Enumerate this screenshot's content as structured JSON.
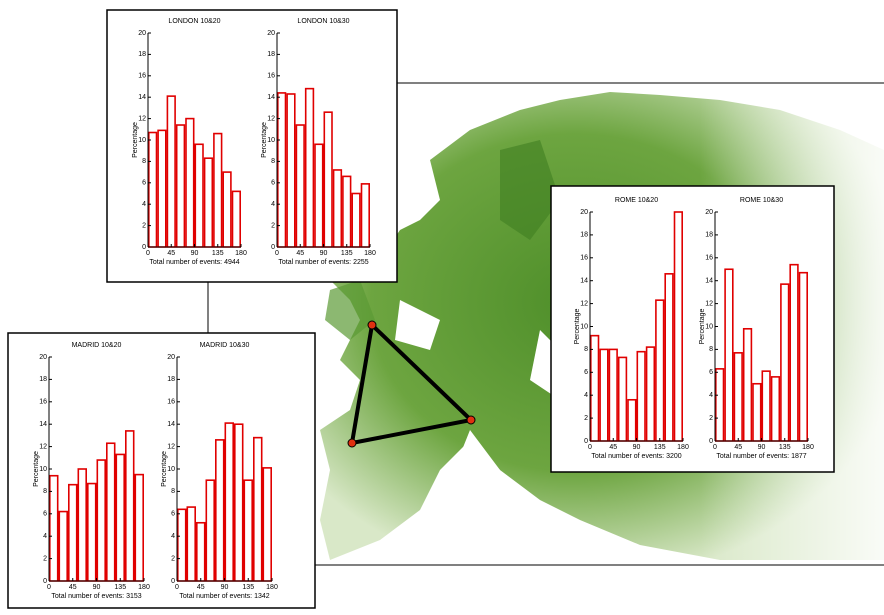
{
  "chart_data": [
    {
      "type": "histogram",
      "title": "LONDON 10&20",
      "x_label": "Total number of events: 4944",
      "y_label": "Percentage",
      "bins": [
        0,
        18,
        36,
        54,
        72,
        90,
        108,
        126,
        144,
        162,
        180
      ],
      "values": [
        10.7,
        10.9,
        14.1,
        11.4,
        12.0,
        9.6,
        8.3,
        10.6,
        7.0,
        5.2
      ],
      "color": "#e00000",
      "xlim": [
        0,
        180
      ],
      "ylim": [
        0,
        20
      ],
      "xticks": [
        0,
        45,
        90,
        135,
        180
      ],
      "yticks": [
        0,
        2,
        4,
        6,
        8,
        10,
        12,
        14,
        16,
        18,
        20
      ]
    },
    {
      "type": "histogram",
      "title": "LONDON 10&30",
      "x_label": "Total number of events: 2255",
      "y_label": "Percentage",
      "bins": [
        0,
        18,
        36,
        54,
        72,
        90,
        108,
        126,
        144,
        162,
        180
      ],
      "values": [
        14.4,
        14.3,
        11.4,
        14.8,
        9.6,
        12.6,
        7.2,
        6.6,
        5.0,
        5.9
      ],
      "color": "#e00000",
      "xlim": [
        0,
        180
      ],
      "ylim": [
        0,
        20
      ],
      "xticks": [
        0,
        45,
        90,
        135,
        180
      ],
      "yticks": [
        0,
        2,
        4,
        6,
        8,
        10,
        12,
        14,
        16,
        18,
        20
      ]
    },
    {
      "type": "histogram",
      "title": "ROME 10&20",
      "x_label": "Total number of events: 3200",
      "y_label": "Percentage",
      "bins": [
        0,
        18,
        36,
        54,
        72,
        90,
        108,
        126,
        144,
        162,
        180
      ],
      "values": [
        9.2,
        8.0,
        8.0,
        7.3,
        3.6,
        7.8,
        8.2,
        12.3,
        14.6,
        20.0
      ],
      "color": "#e00000",
      "xlim": [
        0,
        180
      ],
      "ylim": [
        0,
        20
      ],
      "xticks": [
        0,
        45,
        90,
        135,
        180
      ],
      "yticks": [
        0,
        2,
        4,
        6,
        8,
        10,
        12,
        14,
        16,
        18,
        20
      ]
    },
    {
      "type": "histogram",
      "title": "ROME 10&30",
      "x_label": "Total number of events: 1877",
      "y_label": "Percentage",
      "bins": [
        0,
        18,
        36,
        54,
        72,
        90,
        108,
        126,
        144,
        162,
        180
      ],
      "values": [
        6.3,
        15.0,
        7.7,
        9.8,
        5.0,
        6.1,
        5.6,
        13.7,
        15.4,
        14.7
      ],
      "color": "#e00000",
      "xlim": [
        0,
        180
      ],
      "ylim": [
        0,
        20
      ],
      "xticks": [
        0,
        45,
        90,
        135,
        180
      ],
      "yticks": [
        0,
        2,
        4,
        6,
        8,
        10,
        12,
        14,
        16,
        18,
        20
      ]
    },
    {
      "type": "histogram",
      "title": "MADRID 10&20",
      "x_label": "Total number of events: 3153",
      "y_label": "Percentage",
      "bins": [
        0,
        18,
        36,
        54,
        72,
        90,
        108,
        126,
        144,
        162,
        180
      ],
      "values": [
        9.4,
        6.2,
        8.6,
        10.0,
        8.7,
        10.8,
        12.3,
        11.3,
        13.4,
        9.5
      ],
      "color": "#e00000",
      "xlim": [
        0,
        180
      ],
      "ylim": [
        0,
        20
      ],
      "xticks": [
        0,
        45,
        90,
        135,
        180
      ],
      "yticks": [
        0,
        2,
        4,
        6,
        8,
        10,
        12,
        14,
        16,
        18,
        20
      ]
    },
    {
      "type": "histogram",
      "title": "MADRID 10&30",
      "x_label": "Total number of events: 1342",
      "y_label": "Percentage",
      "bins": [
        0,
        18,
        36,
        54,
        72,
        90,
        108,
        126,
        144,
        162,
        180
      ],
      "values": [
        6.4,
        6.6,
        5.2,
        9.0,
        12.6,
        14.1,
        14.0,
        9.0,
        12.8,
        10.1
      ],
      "color": "#e00000",
      "xlim": [
        0,
        180
      ],
      "ylim": [
        0,
        20
      ],
      "xticks": [
        0,
        45,
        90,
        135,
        180
      ],
      "yticks": [
        0,
        2,
        4,
        6,
        8,
        10,
        12,
        14,
        16,
        18,
        20
      ]
    }
  ]
}
